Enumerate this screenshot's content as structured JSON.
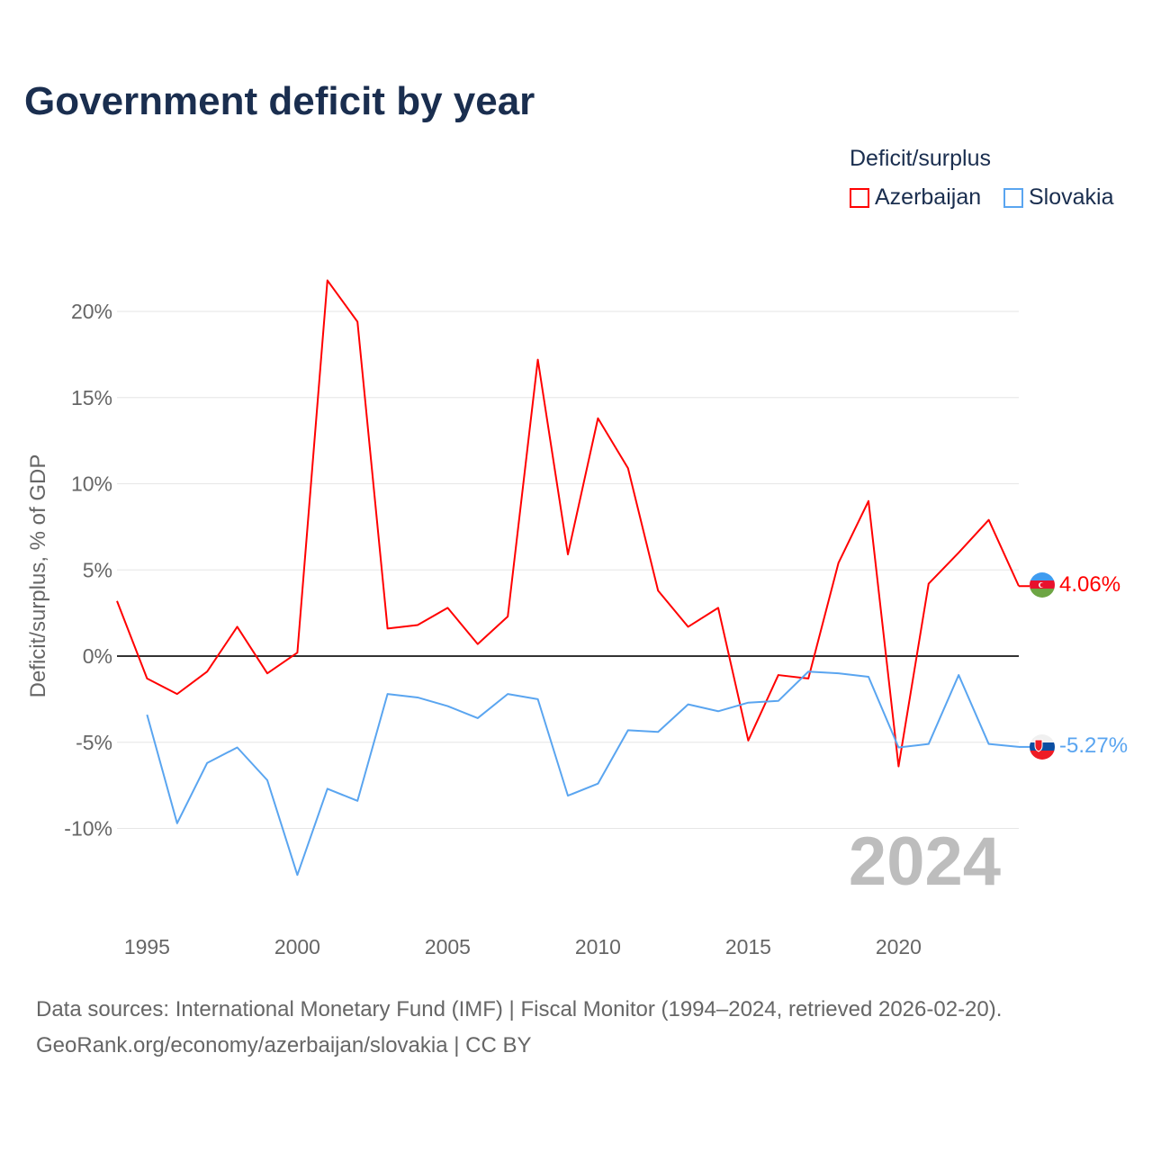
{
  "chart_data": {
    "type": "line",
    "title": "Government deficit by year",
    "xlabel": "",
    "ylabel": "Deficit/surplus, % of GDP",
    "xlim": [
      1994,
      2024
    ],
    "ylim": [
      -14.3,
      22.5
    ],
    "x_ticks": [
      1995,
      2000,
      2005,
      2010,
      2015,
      2020
    ],
    "x_tick_labels": [
      "1995",
      "2000",
      "2005",
      "2010",
      "2015",
      "2020"
    ],
    "y_ticks": [
      -10,
      -5,
      0,
      5,
      10,
      15,
      20
    ],
    "y_tick_labels": [
      "-10%",
      "-5%",
      "0%",
      "5%",
      "10%",
      "15%",
      "20%"
    ],
    "grid": true,
    "legend_title": "Deficit/surplus",
    "legend_placement": "top-right",
    "year_watermark": "2024",
    "series": [
      {
        "name": "Azerbaijan",
        "color": "#ff0000",
        "end_label": "4.06%",
        "x": [
          1994,
          1995,
          1996,
          1997,
          1998,
          1999,
          2000,
          2001,
          2002,
          2003,
          2004,
          2005,
          2006,
          2007,
          2008,
          2009,
          2010,
          2011,
          2012,
          2013,
          2014,
          2015,
          2016,
          2017,
          2018,
          2019,
          2020,
          2021,
          2022,
          2023,
          2024
        ],
        "values": [
          3.2,
          -1.3,
          -2.2,
          -0.9,
          1.7,
          -1.0,
          0.2,
          21.8,
          19.4,
          1.6,
          1.8,
          2.8,
          0.7,
          2.3,
          17.2,
          5.9,
          13.8,
          10.9,
          3.8,
          1.7,
          2.8,
          -4.9,
          -1.1,
          -1.3,
          5.4,
          9.0,
          -6.4,
          4.2,
          6.0,
          7.9,
          4.06
        ]
      },
      {
        "name": "Slovakia",
        "color": "#5aa5f0",
        "end_label": "-5.27%",
        "x": [
          1995,
          1996,
          1997,
          1998,
          1999,
          2000,
          2001,
          2002,
          2003,
          2004,
          2005,
          2006,
          2007,
          2008,
          2009,
          2010,
          2011,
          2012,
          2013,
          2014,
          2015,
          2016,
          2017,
          2018,
          2019,
          2020,
          2021,
          2022,
          2023,
          2024
        ],
        "values": [
          -3.4,
          -9.7,
          -6.2,
          -5.3,
          -7.2,
          -12.7,
          -7.7,
          -8.4,
          -2.2,
          -2.4,
          -2.9,
          -3.6,
          -2.2,
          -2.5,
          -8.1,
          -7.4,
          -4.3,
          -4.4,
          -2.8,
          -3.2,
          -2.7,
          -2.6,
          -0.9,
          -1.0,
          -1.2,
          -5.3,
          -5.1,
          -1.1,
          -5.1,
          -5.27
        ]
      }
    ]
  },
  "footer": {
    "sources": "Data sources: International Monetary Fund (IMF) | Fiscal Monitor (1994–2024, retrieved 2026-02-20).",
    "credit": "GeoRank.org/economy/azerbaijan/slovakia | CC BY"
  }
}
